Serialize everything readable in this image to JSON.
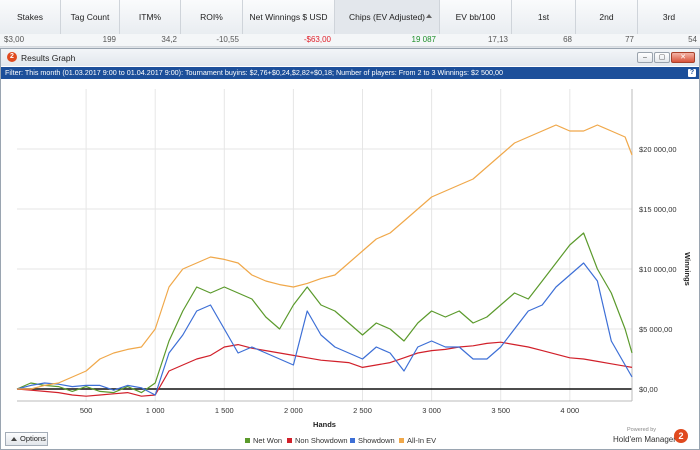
{
  "columns": [
    {
      "label": "Stakes",
      "value": "$3,00"
    },
    {
      "label": "Tag Count",
      "value": "199"
    },
    {
      "label": "ITM%",
      "value": "34,2"
    },
    {
      "label": "ROI%",
      "value": "-10,55"
    },
    {
      "label": "Net Winnings $ USD",
      "value": "-$63,00"
    },
    {
      "label": "Chips (EV Adjusted)",
      "value": "19 087"
    },
    {
      "label": "EV bb/100",
      "value": "17,13"
    },
    {
      "label": "1st",
      "value": "68"
    },
    {
      "label": "2nd",
      "value": "77"
    },
    {
      "label": "3rd",
      "value": "54"
    }
  ],
  "colors": {
    "negative": "#e0202a",
    "positive": "#1f8f2a",
    "accent": "#1c4f9a"
  },
  "window": {
    "title": "Results Graph",
    "filter": "Filter: This month (01.03.2017 9:00 to 01.04.2017 9:00): Tournament buyins: $2,76+$0,24,$2,82+$0,18; Number of players: From 2 to 3 Winnings: $2 500,00",
    "help": "?"
  },
  "options_label": "Options",
  "brand": {
    "powered": "Powered by",
    "name": "Hold'em Manager",
    "logo": "2"
  },
  "chart_data": {
    "type": "line",
    "xlabel": "Hands",
    "ylabel": "Winnings",
    "xlim": [
      0,
      4450
    ],
    "ylim": [
      -1000,
      25000
    ],
    "x_ticks": [
      500,
      1000,
      1500,
      2000,
      2500,
      3000,
      3500,
      4000
    ],
    "x_tick_labels": [
      "500",
      "1 000",
      "1 500",
      "2 000",
      "2 500",
      "3 000",
      "3 500",
      "4 000"
    ],
    "y_ticks": [
      0,
      5000,
      10000,
      15000,
      20000
    ],
    "y_tick_labels": [
      "$0,00",
      "$5 000,00",
      "$10 000,00",
      "$15 000,00",
      "$20 000,00"
    ],
    "grid": true,
    "legend_position": "bottom",
    "x": [
      0,
      100,
      200,
      300,
      400,
      500,
      600,
      700,
      800,
      900,
      1000,
      1100,
      1200,
      1300,
      1400,
      1500,
      1600,
      1700,
      1800,
      1900,
      2000,
      2100,
      2200,
      2300,
      2400,
      2500,
      2600,
      2700,
      2800,
      2900,
      3000,
      3100,
      3200,
      3300,
      3400,
      3500,
      3600,
      3700,
      3800,
      3900,
      4000,
      4100,
      4200,
      4300,
      4400,
      4450
    ],
    "series": [
      {
        "name": "Net Won",
        "color": "#5b9a2c",
        "values": [
          0,
          500,
          300,
          200,
          -200,
          200,
          -200,
          -300,
          200,
          -300,
          500,
          4000,
          6500,
          8500,
          8000,
          8500,
          8000,
          7500,
          6000,
          5000,
          7000,
          8500,
          7000,
          6500,
          5500,
          4500,
          5500,
          5000,
          4000,
          5500,
          6500,
          6000,
          6500,
          5500,
          6000,
          7000,
          8000,
          7500,
          9000,
          10500,
          12000,
          13000,
          10000,
          8000,
          5000,
          3000
        ]
      },
      {
        "name": "Non Showdown",
        "color": "#d1202a",
        "values": [
          0,
          -100,
          -200,
          -300,
          -500,
          -600,
          -500,
          -400,
          -300,
          -600,
          -500,
          1500,
          2000,
          2500,
          2800,
          3500,
          3700,
          3400,
          3200,
          3000,
          2800,
          2600,
          2400,
          2300,
          2200,
          1800,
          2000,
          2200,
          2600,
          3000,
          3200,
          3300,
          3500,
          3600,
          3800,
          3900,
          3700,
          3500,
          3200,
          2900,
          2600,
          2500,
          2300,
          2100,
          1900,
          1800
        ]
      },
      {
        "name": "Showdown",
        "color": "#3d6fd6",
        "values": [
          0,
          300,
          500,
          400,
          200,
          300,
          300,
          -100,
          300,
          100,
          -500,
          3000,
          4500,
          6500,
          7000,
          5000,
          3000,
          3500,
          3000,
          2500,
          2000,
          6500,
          4500,
          3500,
          3000,
          2500,
          3500,
          3000,
          1500,
          3500,
          4000,
          3500,
          3500,
          2500,
          2500,
          3500,
          5000,
          6500,
          7000,
          8500,
          9500,
          10500,
          9000,
          4000,
          2000,
          1000
        ]
      },
      {
        "name": "All-In EV",
        "color": "#f0a84a",
        "values": [
          0,
          0,
          300,
          500,
          1000,
          1500,
          2500,
          3000,
          3300,
          3500,
          5000,
          8500,
          10000,
          10500,
          11000,
          10800,
          10500,
          9500,
          9000,
          8700,
          8500,
          8800,
          9200,
          9500,
          10500,
          11500,
          12500,
          13000,
          14000,
          15000,
          16000,
          16500,
          17000,
          17500,
          18500,
          19500,
          20500,
          21000,
          21500,
          22000,
          21500,
          21500,
          22000,
          21500,
          21000,
          19500
        ]
      }
    ]
  }
}
